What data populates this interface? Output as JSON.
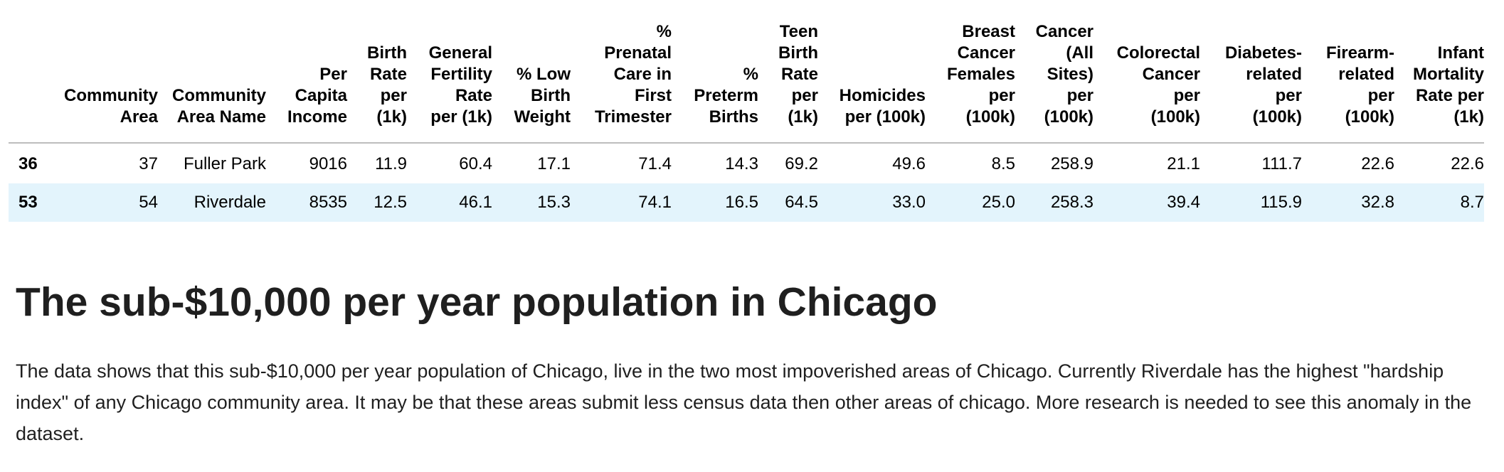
{
  "table": {
    "headers": [
      "",
      [
        "Community",
        "Area"
      ],
      [
        "Community",
        "Area Name"
      ],
      [
        "Per",
        "Capita",
        "Income"
      ],
      [
        "Birth",
        "Rate",
        "per",
        "(1k)"
      ],
      [
        "General",
        "Fertility",
        "Rate",
        "per (1k)"
      ],
      [
        "% Low",
        "Birth",
        "Weight"
      ],
      [
        "%",
        "Prenatal",
        "Care in",
        "First",
        "Trimester"
      ],
      [
        "%",
        "Preterm",
        "Births"
      ],
      [
        "Teen",
        "Birth",
        "Rate",
        "per",
        "(1k)"
      ],
      [
        "Homicides",
        "per (100k)"
      ],
      [
        "Breast",
        "Cancer",
        "Females",
        "per",
        "(100k)"
      ],
      [
        "Cancer",
        "(All",
        "Sites)",
        "per",
        "(100k)"
      ],
      [
        "Colorectal",
        "Cancer",
        "per",
        "(100k)"
      ],
      [
        "Diabetes-",
        "related",
        "per",
        "(100k)"
      ],
      [
        "Firearm-",
        "related",
        "per",
        "(100k)"
      ],
      [
        "Infant",
        "Mortality",
        "Rate per",
        "(1k)"
      ]
    ],
    "rows": [
      [
        "36",
        "37",
        "Fuller Park",
        "9016",
        "11.9",
        "60.4",
        "17.1",
        "71.4",
        "14.3",
        "69.2",
        "49.6",
        "8.5",
        "258.9",
        "21.1",
        "111.7",
        "22.6",
        "22.6"
      ],
      [
        "53",
        "54",
        "Riverdale",
        "8535",
        "12.5",
        "46.1",
        "15.3",
        "74.1",
        "16.5",
        "64.5",
        "33.0",
        "25.0",
        "258.3",
        "39.4",
        "115.9",
        "32.8",
        "8.7"
      ]
    ]
  },
  "heading": "The sub-$10,000 per year population in Chicago",
  "paragraph": "The data shows that this sub-$10,000 per year population of Chicago, live in the two most impoverished areas of Chicago. Currently Riverdale has the highest \"hardship index\" of any Chicago community area. It may be that these areas submit less census data then other areas of chicago. More research is needed to see this anomaly in the dataset.",
  "colors": {
    "alt_row": "#e3f4fc",
    "rule": "#bdbdbd",
    "text": "#1f1f1f"
  }
}
